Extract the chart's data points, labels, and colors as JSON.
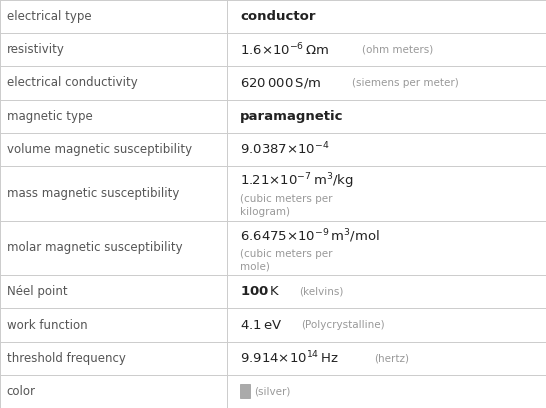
{
  "rows": [
    {
      "label": "electrical type",
      "value_latex": "conductor",
      "bold_value": true,
      "extra": "",
      "tall": false
    },
    {
      "label": "resistivity",
      "value_latex": "$1.6{\\times}10^{-6}\\,\\Omega\\mathrm{m}$",
      "bold_value": false,
      "extra": "(ohm meters)",
      "tall": false
    },
    {
      "label": "electrical conductivity",
      "value_latex": "$620\\,000\\,\\mathrm{S/m}$",
      "bold_value": false,
      "extra": "(siemens per meter)",
      "tall": false
    },
    {
      "label": "magnetic type",
      "value_latex": "paramagnetic",
      "bold_value": true,
      "extra": "",
      "tall": false
    },
    {
      "label": "volume magnetic susceptibility",
      "value_latex": "$9.0387{\\times}10^{-4}$",
      "bold_value": false,
      "extra": "",
      "tall": false
    },
    {
      "label": "mass magnetic susceptibility",
      "value_latex": "$1.21{\\times}10^{-7}\\,\\mathrm{m^3/kg}$",
      "bold_value": false,
      "extra": "(cubic meters per\nkilogram)",
      "tall": true
    },
    {
      "label": "molar magnetic susceptibility",
      "value_latex": "$6.6475{\\times}10^{-9}\\,\\mathrm{m^3/mol}$",
      "bold_value": false,
      "extra": "(cubic meters per\nmole)",
      "tall": true
    },
    {
      "label": "Néel point",
      "value_latex": "$\\mathbf{100}\\,\\mathrm{K}$",
      "bold_value": false,
      "extra": "(kelvins)",
      "tall": false,
      "value_100K": true
    },
    {
      "label": "work function",
      "value_latex": "$4.1\\,\\mathrm{eV}$",
      "bold_value": false,
      "extra": "(Polycrystalline)",
      "tall": false
    },
    {
      "label": "threshold frequency",
      "value_latex": "$9.914{\\times}10^{14}\\,\\mathrm{Hz}$",
      "bold_value": false,
      "extra": "(hertz)",
      "tall": false
    },
    {
      "label": "color",
      "value_latex": "",
      "bold_value": false,
      "extra": "(silver)",
      "tall": false,
      "color_swatch": "#aaaaaa"
    }
  ],
  "col_split": 0.415,
  "border_color": "#cccccc",
  "label_color": "#555555",
  "value_color": "#222222",
  "extra_color": "#999999",
  "label_fontsize": 8.5,
  "value_fontsize": 9.5,
  "extra_fontsize": 7.5,
  "row_heights": [
    1,
    1,
    1,
    1,
    1,
    1.65,
    1.65,
    1,
    1,
    1,
    1
  ]
}
